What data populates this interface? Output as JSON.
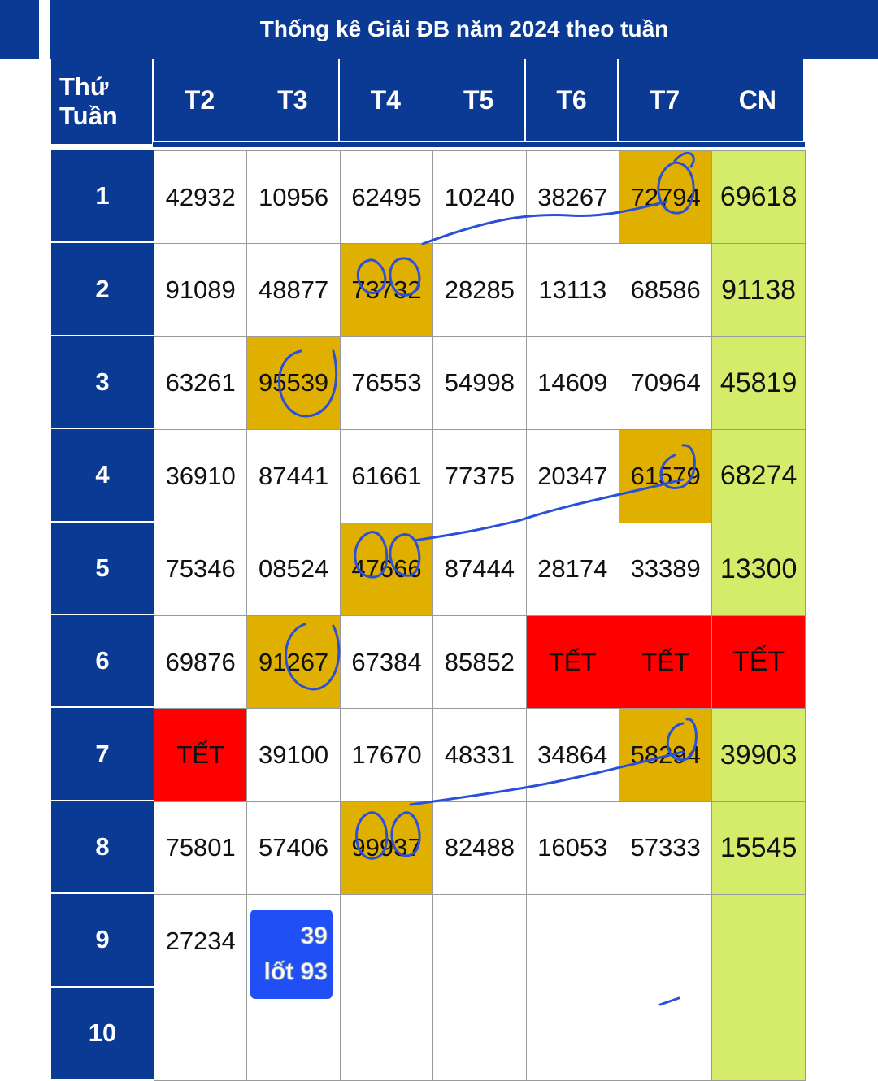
{
  "header": {
    "title": "Thống kê Giải ĐB năm 2024 theo tuần"
  },
  "table": {
    "corner": [
      "Thứ",
      "Tuần"
    ],
    "columns": [
      "T2",
      "T3",
      "T4",
      "T5",
      "T6",
      "T7",
      "CN"
    ],
    "rows": [
      {
        "week": "1",
        "cells": [
          "42932",
          "10956",
          "62495",
          "10240",
          "38267",
          "72794",
          "69618"
        ]
      },
      {
        "week": "2",
        "cells": [
          "91089",
          "48877",
          "73732",
          "28285",
          "13113",
          "68586",
          "91138"
        ]
      },
      {
        "week": "3",
        "cells": [
          "63261",
          "95539",
          "76553",
          "54998",
          "14609",
          "70964",
          "45819"
        ]
      },
      {
        "week": "4",
        "cells": [
          "36910",
          "87441",
          "61661",
          "77375",
          "20347",
          "61579",
          "68274"
        ]
      },
      {
        "week": "5",
        "cells": [
          "75346",
          "08524",
          "47666",
          "87444",
          "28174",
          "33389",
          "13300"
        ]
      },
      {
        "week": "6",
        "cells": [
          "69876",
          "91267",
          "67384",
          "85852",
          "TẾT",
          "TẾT",
          "TẾT"
        ]
      },
      {
        "week": "7",
        "cells": [
          "TẾT",
          "39100",
          "17670",
          "48331",
          "34864",
          "58294",
          "39903"
        ]
      },
      {
        "week": "8",
        "cells": [
          "75801",
          "57406",
          "99937",
          "82488",
          "16053",
          "57333",
          "15545"
        ]
      },
      {
        "week": "9",
        "cells": [
          "27234"
        ],
        "sticker": [
          "39",
          "lốt 93"
        ]
      },
      {
        "week": "10",
        "cells": []
      }
    ]
  }
}
